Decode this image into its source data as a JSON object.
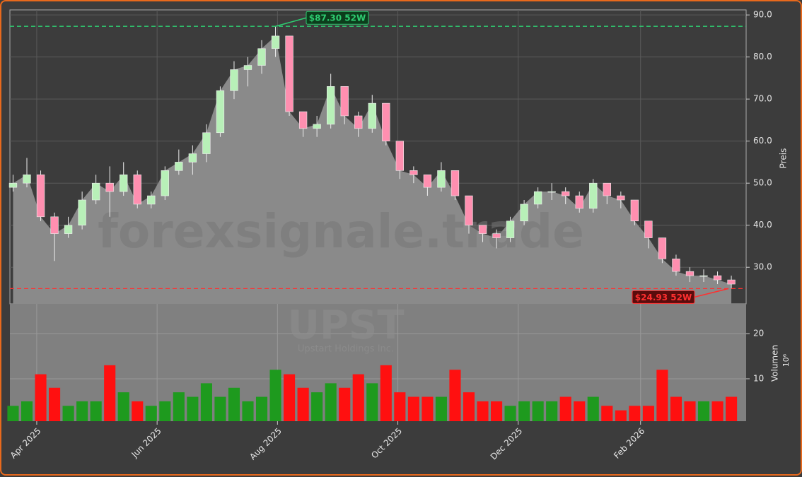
{
  "chart_data": {
    "type": "candlestick",
    "symbol": "UPST",
    "company": "Upstart Holdings Inc.",
    "watermark": "forexsignale.trade",
    "y_label": "Preis",
    "volume_label": "Volumen",
    "volume_scale_label": "10⁶",
    "x": [
      -12,
      -5,
      2,
      9,
      16,
      23,
      30,
      37,
      44,
      51,
      58,
      65,
      72,
      79,
      86,
      93,
      100,
      107,
      114,
      121,
      128,
      135,
      142,
      149,
      156,
      163,
      170,
      177,
      184,
      191,
      198,
      205,
      212,
      219,
      226,
      233,
      240,
      247,
      254,
      261,
      268,
      275,
      282,
      289,
      296,
      303,
      310,
      317,
      324,
      331,
      338,
      345,
      352
    ],
    "open": [
      49,
      50,
      52,
      42,
      38,
      40,
      46,
      50,
      48,
      52,
      45,
      47,
      53,
      55,
      57,
      62,
      72,
      77,
      78,
      82,
      85,
      67,
      63,
      64,
      73,
      66,
      63,
      69,
      60,
      53,
      52,
      49,
      53,
      47,
      40,
      38,
      37,
      41,
      45,
      48,
      48,
      47,
      44,
      50,
      47,
      46,
      41,
      37,
      32,
      29,
      28,
      28,
      27
    ],
    "high": [
      52,
      56,
      53,
      43,
      42,
      48,
      52,
      54,
      55,
      53,
      48,
      54,
      58,
      59,
      64,
      73,
      79,
      80,
      84,
      87.3,
      85,
      67,
      66,
      76,
      73,
      67,
      71,
      69,
      60,
      54,
      52,
      55,
      53,
      47,
      40,
      39,
      42,
      46,
      49,
      50,
      49,
      48,
      51,
      50,
      48,
      46,
      41,
      37,
      33,
      30,
      29.5,
      29,
      28
    ],
    "low": [
      48,
      49,
      41,
      31.5,
      37,
      39,
      45,
      42,
      47,
      44,
      44,
      46,
      52,
      52,
      55,
      61,
      70,
      73,
      76,
      80,
      66,
      61,
      61,
      63,
      64,
      61,
      62,
      59,
      51,
      50,
      47,
      48,
      46,
      38,
      36,
      34.5,
      36,
      40,
      44,
      46,
      45,
      43,
      43,
      45,
      44,
      40,
      34.5,
      31,
      28,
      26.5,
      26.5,
      26,
      24.93
    ],
    "close": [
      50,
      52,
      42,
      38,
      40,
      46,
      50,
      48,
      52,
      45,
      47,
      53,
      55,
      57,
      62,
      72,
      77,
      78,
      82,
      85,
      67,
      63,
      64,
      73,
      66,
      63,
      69,
      60,
      53,
      52,
      49,
      53,
      47,
      40,
      38,
      37,
      41,
      45,
      48,
      48,
      47,
      44,
      50,
      47,
      46,
      41,
      37,
      32,
      29,
      28,
      28,
      27,
      26
    ],
    "volume": [
      4,
      5,
      11,
      8,
      4,
      5,
      5,
      13,
      7,
      5,
      4,
      5,
      7,
      6,
      9,
      6,
      8,
      5,
      6,
      12,
      11,
      8,
      7,
      9,
      8,
      11,
      9,
      13,
      7,
      6,
      6,
      6,
      12,
      7,
      5,
      5,
      4,
      5,
      5,
      5,
      6,
      5,
      6,
      4,
      3,
      4,
      4,
      12,
      6,
      5,
      5,
      5,
      6
    ],
    "up_color": "#1e9a1e",
    "down_color": "#ff1010",
    "area_color": "#8a8a8a",
    "xlim": [
      -13.6,
      359.5
    ],
    "xticks": [
      {
        "value": 0,
        "label": "Apr 2025"
      },
      {
        "value": 61,
        "label": "Jun 2025"
      },
      {
        "value": 122,
        "label": "Aug 2025"
      },
      {
        "value": 183,
        "label": "Oct 2025"
      },
      {
        "value": 244,
        "label": "Dec 2025"
      },
      {
        "value": 306,
        "label": "Feb 2026"
      }
    ],
    "ylim": [
      21.3,
      91.2
    ],
    "yticks": [
      {
        "value": 30,
        "label": "30.0"
      },
      {
        "value": 40,
        "label": "40.0"
      },
      {
        "value": 50,
        "label": "50.0"
      },
      {
        "value": 60,
        "label": "60.0"
      },
      {
        "value": 70,
        "label": "70.0"
      },
      {
        "value": 80,
        "label": "80.0"
      },
      {
        "value": 90,
        "label": "90.0"
      }
    ],
    "volume_ylim": [
      0.6,
      26.6
    ],
    "volume_yticks": [
      10,
      20
    ],
    "grid": true,
    "annotations": [
      {
        "value": 87.3,
        "label": "$87.30 52W",
        "color": "#2ecc71"
      },
      {
        "value": 24.93,
        "label": "$24.93 52W",
        "color": "#ff3030"
      }
    ]
  }
}
